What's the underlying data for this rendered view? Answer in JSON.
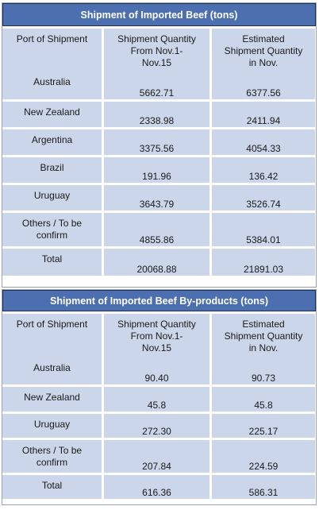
{
  "beef": {
    "title": "Shipment of Imported  Beef (tons)",
    "headers": [
      "Port of Shipment",
      "Shipment Quantity From Nov.1-Nov.15",
      "Estimated Shipment Quantity in Nov."
    ],
    "header_lines": {
      "c1": "Port of Shipment",
      "c2a": "Shipment Quantity",
      "c2b": "From Nov.1-",
      "c2c": "Nov.15",
      "c3a": "Estimated",
      "c3b": "Shipment Quantity",
      "c3c": "in Nov."
    },
    "rows": [
      {
        "port": "Australia",
        "port2": "",
        "q1": "5662.71",
        "q2": "6377.56"
      },
      {
        "port": "New Zealand",
        "port2": "",
        "q1": "2338.98",
        "q2": "2411.94"
      },
      {
        "port": "Argentina",
        "port2": "",
        "q1": "3375.56",
        "q2": "4054.33"
      },
      {
        "port": "Brazil",
        "port2": "",
        "q1": "191.96",
        "q2": "136.42"
      },
      {
        "port": "Uruguay",
        "port2": "",
        "q1": "3643.79",
        "q2": "3526.74"
      },
      {
        "port": "Others / To be",
        "port2": "confirm",
        "q1": "4855.86",
        "q2": "5384.01"
      },
      {
        "port": "Total",
        "port2": "",
        "q1": "20068.88",
        "q2": "21891.03"
      }
    ]
  },
  "byproducts": {
    "title": "Shipment of Imported Beef By-products (tons)",
    "header_lines": {
      "c1": "Port of Shipment",
      "c2a": "Shipment Quantity",
      "c2b": "From Nov.1-",
      "c2c": "Nov.15",
      "c3a": "Estimated",
      "c3b": "Shipment Quantity",
      "c3c": "in Nov."
    },
    "rows": [
      {
        "port": "Australia",
        "port2": "",
        "q1": "90.40",
        "q2": "90.73"
      },
      {
        "port": "New Zealand",
        "port2": "",
        "q1": "45.8",
        "q2": "45.8"
      },
      {
        "port": "Uruguay",
        "port2": "",
        "q1": "272.30",
        "q2": "225.17"
      },
      {
        "port": "Others / To be",
        "port2": "confirm",
        "q1": "207.84",
        "q2": "224.59"
      },
      {
        "port": "Total",
        "port2": "",
        "q1": "616.36",
        "q2": "586.31"
      }
    ]
  }
}
